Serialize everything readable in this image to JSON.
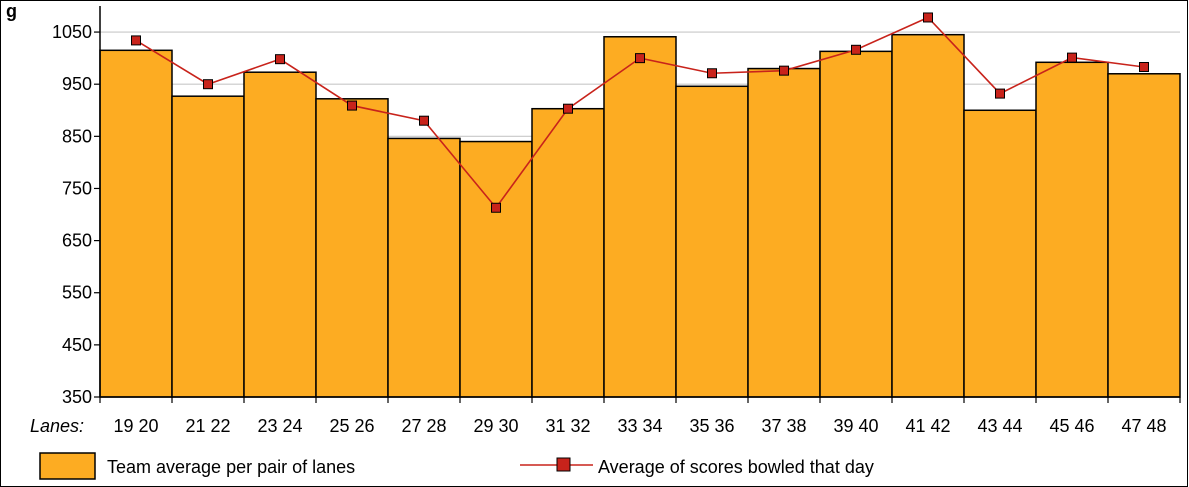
{
  "chart_data": {
    "type": "bar",
    "title": "g",
    "xlabel_prefix": "Lanes:",
    "categories": [
      "19 20",
      "21 22",
      "23 24",
      "25 26",
      "27 28",
      "29 30",
      "31 32",
      "33 34",
      "35 36",
      "37 38",
      "39 40",
      "41 42",
      "43 44",
      "45 46",
      "47 48"
    ],
    "series": [
      {
        "name": "Team average per pair of lanes",
        "kind": "bar",
        "color": "#FDAC22",
        "values": [
          1015,
          927,
          973,
          922,
          846,
          840,
          903,
          1041,
          946,
          980,
          1013,
          1045,
          900,
          992,
          970
        ]
      },
      {
        "name": "Average of scores bowled that day",
        "kind": "line",
        "color": "#C8231B",
        "values": [
          1034,
          950,
          998,
          909,
          880,
          713,
          903,
          1000,
          971,
          976,
          1016,
          1078,
          932,
          1001,
          983
        ]
      }
    ],
    "y_ticks": [
      350,
      450,
      550,
      650,
      750,
      850,
      950,
      1050
    ],
    "ylim": [
      350,
      1100
    ],
    "grid": true,
    "legend_position": "bottom"
  }
}
